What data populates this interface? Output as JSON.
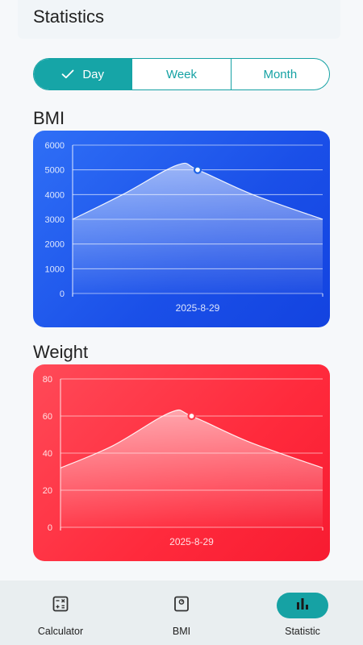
{
  "header": {
    "title": "Statistics"
  },
  "period_tabs": [
    {
      "label": "Day",
      "selected": true
    },
    {
      "label": "Week",
      "selected": false
    },
    {
      "label": "Month",
      "selected": false
    }
  ],
  "sections": {
    "bmi_title": "BMI",
    "weight_title": "Weight"
  },
  "colors": {
    "accent": "#16a2a4",
    "bmi_card": "#1f55ec",
    "weight_card": "#ff2e41"
  },
  "chart_data": [
    {
      "type": "area",
      "id": "bmi",
      "categories": [
        "2025-8-29"
      ],
      "series": [
        {
          "x": [
            0,
            0.2,
            0.42,
            0.5,
            0.72,
            1.0
          ],
          "values": [
            3000,
            4000,
            5200,
            5000,
            4000,
            3000
          ]
        }
      ],
      "highlight": {
        "x": 0.5,
        "value": 5000
      },
      "yticks": [
        0,
        1000,
        2000,
        3000,
        4000,
        5000,
        6000
      ],
      "ylim": [
        0,
        6000
      ],
      "grid": true
    },
    {
      "type": "area",
      "id": "weight",
      "categories": [
        "2025-8-29"
      ],
      "series": [
        {
          "x": [
            0,
            0.2,
            0.42,
            0.5,
            0.72,
            1.0
          ],
          "values": [
            32,
            44,
            62,
            60,
            46,
            32
          ]
        }
      ],
      "highlight": {
        "x": 0.5,
        "value": 60
      },
      "yticks": [
        0,
        20,
        40,
        60,
        80
      ],
      "ylim": [
        0,
        80
      ],
      "grid": true
    }
  ],
  "nav": {
    "items": [
      {
        "label": "Calculator",
        "icon": "calculator-icon",
        "active": false
      },
      {
        "label": "BMI",
        "icon": "scale-icon",
        "active": false
      },
      {
        "label": "Statistic",
        "icon": "bar-chart-icon",
        "active": true
      }
    ]
  }
}
